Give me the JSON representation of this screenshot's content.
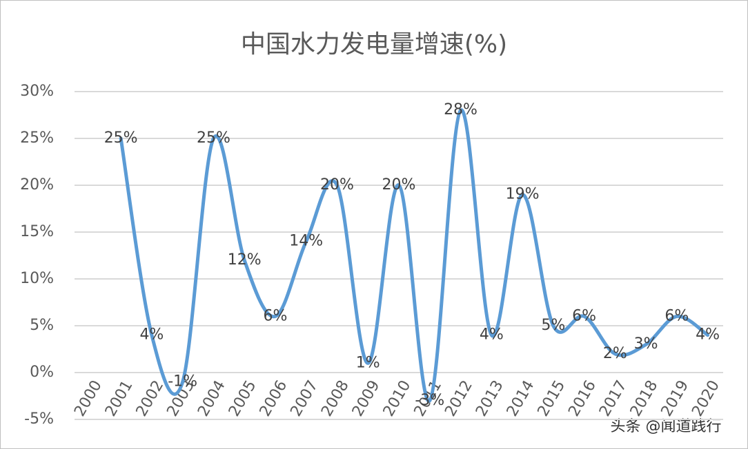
{
  "chart_data": {
    "type": "line",
    "title": "中国水力发电量增速(%)",
    "categories": [
      "2000",
      "2001",
      "2002",
      "2003",
      "2004",
      "2005",
      "2006",
      "2007",
      "2008",
      "2009",
      "2010",
      "2011",
      "2012",
      "2013",
      "2014",
      "2015",
      "2016",
      "2017",
      "2018",
      "2019",
      "2020"
    ],
    "series": [
      {
        "name": "水力发电量增速",
        "color": "#5b9bd5",
        "values": [
          null,
          25,
          4,
          -1,
          25,
          12,
          6,
          14,
          20,
          1,
          20,
          -3,
          28,
          4,
          19,
          5,
          6,
          2,
          3,
          6,
          4
        ],
        "value_labels": [
          null,
          "25%",
          "4%",
          "-1%",
          "25%",
          "12%",
          "6%",
          "14%",
          "20%",
          "1%",
          "20%",
          "-3%",
          "28%",
          "4%",
          "19%",
          "5%",
          "6%",
          "2%",
          "3%",
          "6%",
          "4%"
        ]
      }
    ],
    "ylim": [
      -5,
      30
    ],
    "yticks": [
      {
        "value": -5,
        "label": "-5%"
      },
      {
        "value": 0,
        "label": "0%"
      },
      {
        "value": 5,
        "label": "5%"
      },
      {
        "value": 10,
        "label": "10%"
      },
      {
        "value": 15,
        "label": "15%"
      },
      {
        "value": 20,
        "label": "20%"
      },
      {
        "value": 25,
        "label": "25%"
      },
      {
        "value": 30,
        "label": "30%"
      }
    ],
    "grid": true,
    "smooth": true,
    "watermark": "头条 @闻道践行"
  }
}
